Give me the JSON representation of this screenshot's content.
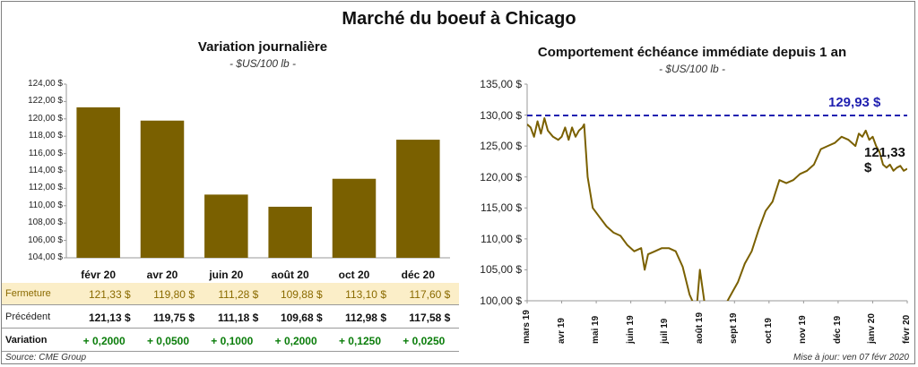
{
  "title": "Marché du boeuf à Chicago",
  "source": "Source: CME Group",
  "updated": "Mise à jour: ven 07 févr 2020",
  "colors": {
    "bar": "#7a6000",
    "highlight_row": "#fbeec8",
    "positive": "#0a7d0a",
    "ref_line": "#2020b0",
    "line": "#7a6000"
  },
  "chart_data": [
    {
      "type": "bar",
      "title": "Variation journalière",
      "subtitle": "- $US/100 lb -",
      "categories": [
        "févr 20",
        "avr 20",
        "juin 20",
        "août 20",
        "oct 20",
        "déc 20"
      ],
      "values": [
        121.33,
        119.8,
        111.28,
        109.88,
        113.1,
        117.6
      ],
      "ylim": [
        104,
        124
      ],
      "y_ticks": [
        "124,00 $",
        "122,00 $",
        "120,00 $",
        "118,00 $",
        "116,00 $",
        "114,00 $",
        "112,00 $",
        "110,00 $",
        "108,00 $",
        "106,00 $",
        "104,00 $"
      ],
      "grid": false,
      "table": {
        "rows": [
          {
            "label": "Fermeture",
            "values": [
              "121,33  $",
              "119,80  $",
              "111,28  $",
              "109,88  $",
              "113,10  $",
              "117,60  $"
            ]
          },
          {
            "label": "Précédent",
            "values": [
              "121,13  $",
              "119,75  $",
              "111,18  $",
              "109,68  $",
              "112,98  $",
              "117,58  $"
            ]
          },
          {
            "label": "Variation",
            "values": [
              "+ 0,2000",
              "+ 0,0500",
              "+ 0,1000",
              "+ 0,2000",
              "+ 0,1250",
              "+ 0,0250"
            ]
          }
        ]
      }
    },
    {
      "type": "line",
      "title": "Comportement  échéance immédiate depuis 1 an",
      "subtitle": "- $US/100 lb -",
      "ylim": [
        100,
        135
      ],
      "y_ticks": [
        "135,00 $",
        "130,00 $",
        "125,00 $",
        "120,00 $",
        "115,00 $",
        "110,00 $",
        "105,00 $",
        "100,00 $"
      ],
      "x_labels": [
        "mars 19",
        "avr 19",
        "mai 19",
        "juin 19",
        "juil 19",
        "août 19",
        "sept 19",
        "oct 19",
        "nov 19",
        "déc 19",
        "janv 20",
        "févr 20"
      ],
      "grid": false,
      "reference": {
        "value": 129.93,
        "label": "129,93 $"
      },
      "last": {
        "value": 121.33,
        "label": "121,33 $"
      },
      "series": [
        {
          "x": [
            0,
            0.1,
            0.2,
            0.3,
            0.4,
            0.5,
            0.6,
            0.75,
            0.9,
            1.0,
            1.1,
            1.2,
            1.3,
            1.4,
            1.5,
            1.6,
            1.65,
            1.75,
            1.9,
            2.1,
            2.3,
            2.5,
            2.7,
            2.9,
            3.1,
            3.3,
            3.4,
            3.5,
            3.7,
            3.9,
            4.1,
            4.3,
            4.5,
            4.7,
            4.9,
            5.0,
            5.1,
            5.2,
            5.4,
            5.6,
            5.8,
            5.95,
            6.1,
            6.3,
            6.5,
            6.7,
            6.9,
            7.1,
            7.3,
            7.5,
            7.7,
            7.9,
            8.1,
            8.3,
            8.5,
            8.7,
            8.9,
            9.1,
            9.3,
            9.5,
            9.6,
            9.7,
            9.8,
            9.9,
            10.0,
            10.1,
            10.2,
            10.3,
            10.4,
            10.5,
            10.6,
            10.7,
            10.8,
            10.9,
            11.0
          ],
          "y": [
            128.5,
            128.0,
            126.5,
            129.0,
            127.0,
            129.5,
            127.5,
            126.5,
            126.0,
            126.5,
            128.0,
            126.0,
            128.0,
            126.5,
            127.5,
            128.0,
            128.5,
            120.0,
            115.0,
            113.5,
            112.0,
            111.0,
            110.5,
            109.0,
            108.0,
            108.5,
            105.0,
            107.5,
            108.0,
            108.5,
            108.5,
            108.0,
            105.5,
            101.0,
            98.5,
            105.0,
            101.0,
            97.0,
            96.0,
            97.5,
            100.0,
            101.5,
            103.0,
            106.0,
            108.0,
            111.5,
            114.5,
            116.0,
            119.5,
            119.0,
            119.5,
            120.5,
            121.0,
            122.0,
            124.5,
            125.0,
            125.5,
            126.5,
            126.0,
            125.0,
            127.0,
            126.5,
            127.5,
            126.0,
            126.5,
            125.0,
            124.0,
            122.0,
            121.5,
            122.0,
            121.0,
            121.5,
            121.8,
            121.0,
            121.33
          ]
        }
      ]
    }
  ]
}
